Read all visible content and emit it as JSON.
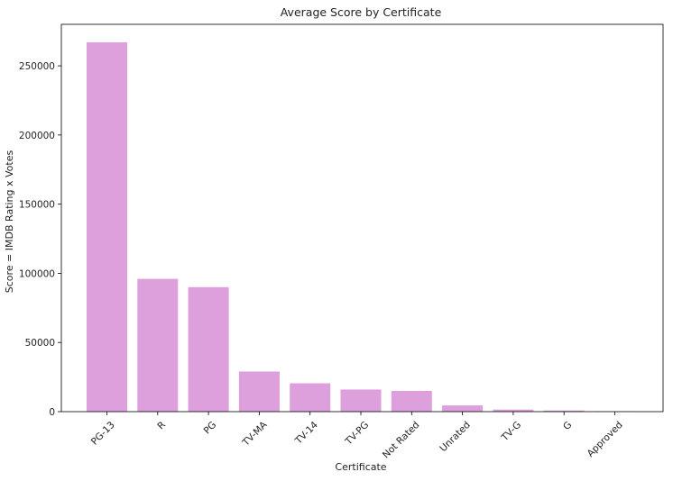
{
  "chart_data": {
    "type": "bar",
    "title": "Average Score by Certificate",
    "xlabel": "Certificate",
    "ylabel": "Score = IMDB Rating x Votes",
    "categories": [
      "PG-13",
      "R",
      "PG",
      "TV-MA",
      "TV-14",
      "TV-PG",
      "Not Rated",
      "Unrated",
      "TV-G",
      "G",
      "Approved"
    ],
    "values": [
      267000,
      96000,
      90000,
      29000,
      20500,
      16000,
      15000,
      4500,
      1500,
      800,
      200
    ],
    "ylim": [
      0,
      280000
    ],
    "yticks": [
      0,
      50000,
      100000,
      150000,
      200000,
      250000
    ],
    "ytick_labels": [
      "0",
      "50000",
      "100000",
      "150000",
      "200000",
      "250000"
    ],
    "bar_color": "#dda0dd",
    "grid": false,
    "legend": false
  }
}
